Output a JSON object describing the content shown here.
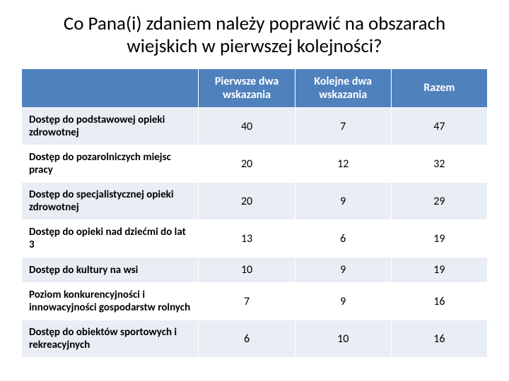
{
  "title": "Co Pana(i) zdaniem należy poprawić na obszarach wiejskich w pierwszej kolejności?",
  "table": {
    "type": "table",
    "header_bg": "#4f81bd",
    "header_fg": "#ffffff",
    "band_bg": "#e9edf4",
    "plain_bg": "#ffffff",
    "border_color": "#ffffff",
    "label_fontweight": 700,
    "label_fontsize": 15,
    "value_fontsize": 16,
    "header_fontsize": 16,
    "columns": [
      "",
      "Pierwsze dwa wskazania",
      "Kolejne dwa wskazania",
      "Razem"
    ],
    "rows": [
      {
        "label": "Dostęp do podstawowej opieki zdrowotnej",
        "values": [
          40,
          7,
          47
        ]
      },
      {
        "label": "Dostęp do pozarolniczych miejsc pracy",
        "values": [
          20,
          12,
          32
        ]
      },
      {
        "label": "Dostęp do specjalistycznej opieki zdrowotnej",
        "values": [
          20,
          9,
          29
        ]
      },
      {
        "label": "Dostęp do opieki nad dziećmi do lat 3",
        "values": [
          13,
          6,
          19
        ]
      },
      {
        "label": "Dostęp do kultury na wsi",
        "values": [
          10,
          9,
          19
        ]
      },
      {
        "label": "Poziom konkurencyjności i innowacyjności gospodarstw rolnych",
        "values": [
          7,
          9,
          16
        ]
      },
      {
        "label": "Dostęp do obiektów sportowych i rekreacyjnych",
        "values": [
          6,
          10,
          16
        ]
      }
    ]
  }
}
